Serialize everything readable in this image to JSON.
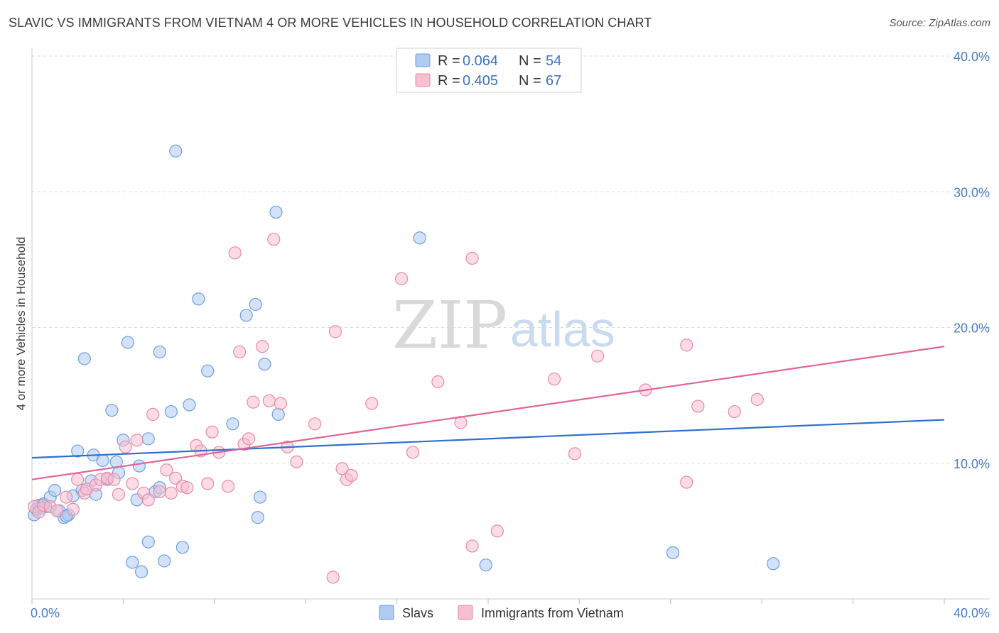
{
  "header": {
    "title": "SLAVIC VS IMMIGRANTS FROM VIETNAM 4 OR MORE VEHICLES IN HOUSEHOLD CORRELATION CHART",
    "source": "Source: ZipAtlas.com"
  },
  "watermark": {
    "zip": "ZIP",
    "atlas": "atlas"
  },
  "legend": {
    "rows": [
      {
        "r_label": "R = ",
        "r_value": "0.064",
        "n_label": "N = ",
        "n_value": "54"
      },
      {
        "r_label": "R = ",
        "r_value": "0.405",
        "n_label": "N = ",
        "n_value": "67"
      }
    ]
  },
  "colors": {
    "slavs_fill": "#aecbf2",
    "slavs_stroke": "#6f9fdc",
    "slavs_line": "#2e6fcf",
    "vietnam_fill": "#f7bfd0",
    "vietnam_stroke": "#e88aa8",
    "vietnam_line": "#e0649a",
    "grid": "#dcdcdc",
    "tick_text": "#4a7cc7"
  },
  "chart_data": {
    "type": "scatter",
    "title": "SLAVIC VS IMMIGRANTS FROM VIETNAM 4 OR MORE VEHICLES IN HOUSEHOLD CORRELATION CHART",
    "xlabel": "",
    "ylabel": "4 or more Vehicles in Household",
    "xlim": [
      0,
      40
    ],
    "ylim": [
      0,
      40
    ],
    "x_tick_labels": [
      "0.0%",
      "40.0%"
    ],
    "y_ticks": [
      10,
      20,
      30,
      40
    ],
    "y_tick_labels": [
      "10.0%",
      "20.0%",
      "30.0%",
      "40.0%"
    ],
    "grid": true,
    "legend_position": "top-center",
    "series": [
      {
        "name": "Slavs",
        "r": 0.064,
        "n": 54,
        "trend": [
          [
            0,
            10.4
          ],
          [
            40,
            13.2
          ]
        ],
        "points": [
          [
            0.1,
            6.2
          ],
          [
            0.2,
            6.6
          ],
          [
            0.3,
            6.9
          ],
          [
            0.5,
            7.0
          ],
          [
            0.6,
            6.8
          ],
          [
            0.8,
            7.5
          ],
          [
            1.0,
            8.0
          ],
          [
            1.2,
            6.5
          ],
          [
            1.4,
            6.0
          ],
          [
            1.6,
            6.2
          ],
          [
            1.8,
            7.6
          ],
          [
            2.0,
            10.9
          ],
          [
            2.2,
            8.0
          ],
          [
            2.3,
            17.7
          ],
          [
            2.6,
            8.7
          ],
          [
            2.7,
            10.6
          ],
          [
            2.8,
            7.7
          ],
          [
            3.1,
            10.2
          ],
          [
            3.3,
            8.8
          ],
          [
            3.5,
            13.9
          ],
          [
            3.7,
            10.1
          ],
          [
            3.8,
            9.3
          ],
          [
            4.0,
            11.7
          ],
          [
            4.2,
            18.9
          ],
          [
            4.4,
            2.7
          ],
          [
            4.6,
            7.3
          ],
          [
            4.7,
            9.8
          ],
          [
            4.8,
            2.0
          ],
          [
            5.1,
            11.8
          ],
          [
            5.1,
            4.2
          ],
          [
            5.4,
            7.9
          ],
          [
            5.6,
            18.2
          ],
          [
            5.6,
            8.2
          ],
          [
            5.8,
            2.8
          ],
          [
            6.1,
            13.8
          ],
          [
            6.3,
            33.0
          ],
          [
            6.6,
            3.8
          ],
          [
            6.9,
            14.3
          ],
          [
            7.3,
            22.1
          ],
          [
            7.7,
            16.8
          ],
          [
            8.8,
            12.9
          ],
          [
            9.4,
            20.9
          ],
          [
            9.8,
            21.7
          ],
          [
            9.9,
            6.0
          ],
          [
            10.0,
            7.5
          ],
          [
            10.2,
            17.3
          ],
          [
            10.7,
            28.5
          ],
          [
            10.8,
            13.6
          ],
          [
            17.0,
            26.6
          ],
          [
            19.9,
            2.5
          ],
          [
            28.1,
            3.4
          ],
          [
            32.5,
            2.6
          ],
          [
            0.4,
            6.7
          ],
          [
            1.5,
            6.1
          ]
        ]
      },
      {
        "name": "Immigrants from Vietnam",
        "r": 0.405,
        "n": 67,
        "trend": [
          [
            0,
            8.8
          ],
          [
            40,
            18.6
          ]
        ],
        "points": [
          [
            0.1,
            6.8
          ],
          [
            0.3,
            6.4
          ],
          [
            0.5,
            6.9
          ],
          [
            0.8,
            6.8
          ],
          [
            1.1,
            6.5
          ],
          [
            1.5,
            7.5
          ],
          [
            1.8,
            6.6
          ],
          [
            2.0,
            8.8
          ],
          [
            2.3,
            7.8
          ],
          [
            2.4,
            8.1
          ],
          [
            2.8,
            8.4
          ],
          [
            3.0,
            8.8
          ],
          [
            3.3,
            8.9
          ],
          [
            3.6,
            8.8
          ],
          [
            3.8,
            7.7
          ],
          [
            4.1,
            11.2
          ],
          [
            4.4,
            8.5
          ],
          [
            4.6,
            11.7
          ],
          [
            4.9,
            7.8
          ],
          [
            5.1,
            7.3
          ],
          [
            5.3,
            13.6
          ],
          [
            5.6,
            7.9
          ],
          [
            5.9,
            9.5
          ],
          [
            6.1,
            7.8
          ],
          [
            6.3,
            8.9
          ],
          [
            6.6,
            8.3
          ],
          [
            6.8,
            8.2
          ],
          [
            7.2,
            11.3
          ],
          [
            7.4,
            10.9
          ],
          [
            7.7,
            8.5
          ],
          [
            7.9,
            12.3
          ],
          [
            8.2,
            10.8
          ],
          [
            8.6,
            8.3
          ],
          [
            8.9,
            25.5
          ],
          [
            9.1,
            18.2
          ],
          [
            9.3,
            11.4
          ],
          [
            9.5,
            11.8
          ],
          [
            9.7,
            14.5
          ],
          [
            10.1,
            18.6
          ],
          [
            10.4,
            14.6
          ],
          [
            10.6,
            26.5
          ],
          [
            10.9,
            14.4
          ],
          [
            11.2,
            11.2
          ],
          [
            11.6,
            10.1
          ],
          [
            12.4,
            12.9
          ],
          [
            13.2,
            1.6
          ],
          [
            13.3,
            19.7
          ],
          [
            13.6,
            9.6
          ],
          [
            13.8,
            8.8
          ],
          [
            14.0,
            9.1
          ],
          [
            14.9,
            14.4
          ],
          [
            16.2,
            23.6
          ],
          [
            16.7,
            10.8
          ],
          [
            17.8,
            16.0
          ],
          [
            18.8,
            13.0
          ],
          [
            19.3,
            3.9
          ],
          [
            19.3,
            25.1
          ],
          [
            20.4,
            5.0
          ],
          [
            22.9,
            16.2
          ],
          [
            23.8,
            10.7
          ],
          [
            24.8,
            17.9
          ],
          [
            26.9,
            15.4
          ],
          [
            28.7,
            8.6
          ],
          [
            28.7,
            18.7
          ],
          [
            29.2,
            14.2
          ],
          [
            30.8,
            13.8
          ],
          [
            31.8,
            14.7
          ]
        ]
      }
    ]
  }
}
